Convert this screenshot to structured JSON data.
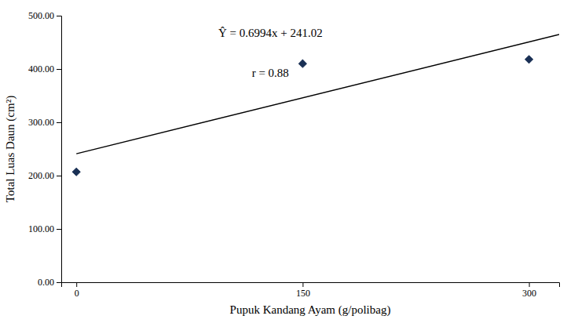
{
  "chart_data": {
    "type": "scatter",
    "xlabel": "Pupuk Kandang Ayam (g/polibag)",
    "ylabel": "Total Luas Daun (cm²)",
    "annotations": [
      "Ŷ = 0.6994x + 241.02",
      "r = 0.88"
    ],
    "series": [
      {
        "type": "scatter",
        "marker": "diamond",
        "color": "#1a3055",
        "x": [
          0,
          150,
          300
        ],
        "values": [
          207,
          410,
          418
        ]
      },
      {
        "type": "line",
        "line_style": "solid",
        "color": "#000000",
        "x": [
          0,
          320
        ],
        "values": [
          241.02,
          464.828
        ]
      }
    ],
    "xlim": [
      -10,
      320
    ],
    "ylim": [
      0,
      500
    ],
    "xticks": [
      0,
      150,
      300
    ],
    "yticks": [
      {
        "value": 0,
        "label": "0.00"
      },
      {
        "value": 100,
        "label": "100.00"
      },
      {
        "value": 200,
        "label": "200.00"
      },
      {
        "value": 300,
        "label": "300.00"
      },
      {
        "value": 400,
        "label": "400.00"
      },
      {
        "value": 500,
        "label": "500.00"
      }
    ],
    "grid": false
  }
}
